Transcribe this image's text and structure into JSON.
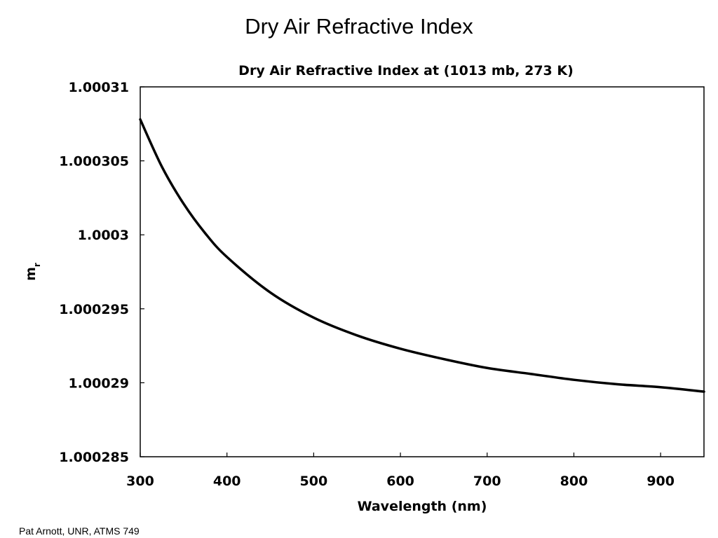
{
  "slide": {
    "title": "Dry Air Refractive Index",
    "footer": "Pat Arnott, UNR, ATMS 749"
  },
  "chart_data": {
    "type": "line",
    "title": "Dry Air Refractive Index at (1013 mb, 273 K)",
    "xlabel": "Wavelength (nm)",
    "ylabel": "m",
    "ylabel_subscript": "r",
    "xlim": [
      300,
      950
    ],
    "ylim": [
      1.000285,
      1.00031
    ],
    "x_ticks": [
      300,
      400,
      500,
      600,
      700,
      800,
      900
    ],
    "x_tick_labels": [
      "300",
      "400",
      "500",
      "600",
      "700",
      "800",
      "900"
    ],
    "y_ticks": [
      1.000285,
      1.00029,
      1.000295,
      1.0003,
      1.000305,
      1.00031
    ],
    "y_tick_labels": [
      "1.000285",
      "1.00029",
      "1.000295",
      "1.0003",
      "1.000305",
      "1.00031"
    ],
    "grid": false,
    "series": [
      {
        "x": [
          300,
          325,
          350,
          375,
          400,
          450,
          500,
          550,
          600,
          650,
          700,
          750,
          800,
          850,
          900,
          950
        ],
        "y": [
          1.0003078,
          1.0003046,
          1.0003021,
          1.0003001,
          1.0002985,
          1.0002961,
          1.0002944,
          1.0002932,
          1.0002923,
          1.0002916,
          1.000291,
          1.0002906,
          1.0002902,
          1.0002899,
          1.0002897,
          1.0002894
        ]
      }
    ]
  }
}
